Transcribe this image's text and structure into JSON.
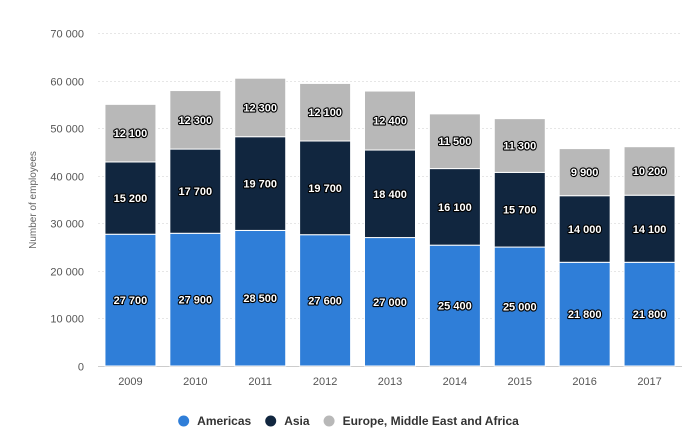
{
  "chart_data": {
    "type": "bar",
    "stacked": true,
    "categories": [
      "2009",
      "2010",
      "2011",
      "2012",
      "2013",
      "2014",
      "2015",
      "2016",
      "2017"
    ],
    "series": [
      {
        "name": "Americas",
        "color": "#2f7ed8",
        "values": [
          27700,
          27900,
          28500,
          27600,
          27000,
          25400,
          25000,
          21800,
          21800
        ],
        "labels": [
          "27 700",
          "27 900",
          "28 500",
          "27 600",
          "27 000",
          "25 400",
          "25 000",
          "21 800",
          "21 800"
        ]
      },
      {
        "name": "Asia",
        "color": "#11263f",
        "values": [
          15200,
          17700,
          19700,
          19700,
          18400,
          16100,
          15700,
          14000,
          14100
        ],
        "labels": [
          "15 200",
          "17 700",
          "19 700",
          "19 700",
          "18 400",
          "16 100",
          "15 700",
          "14 000",
          "14 100"
        ]
      },
      {
        "name": "Europe, Middle East and Africa",
        "color": "#b8b8b8",
        "values": [
          12100,
          12300,
          12300,
          12100,
          12400,
          11500,
          11300,
          9900,
          10200
        ],
        "labels": [
          "12 100",
          "12 300",
          "12 300",
          "12 100",
          "12 400",
          "11 500",
          "11 300",
          "9 900",
          "10 200"
        ]
      }
    ],
    "ylabel": "Number of employees",
    "ylim": [
      0,
      70000
    ],
    "yticks": [
      0,
      10000,
      20000,
      30000,
      40000,
      50000,
      60000,
      70000
    ],
    "ytick_labels": [
      "0",
      "10 000",
      "20 000",
      "30 000",
      "40 000",
      "50 000",
      "60 000",
      "70 000"
    ],
    "grid": true,
    "legend_position": "bottom-center"
  }
}
